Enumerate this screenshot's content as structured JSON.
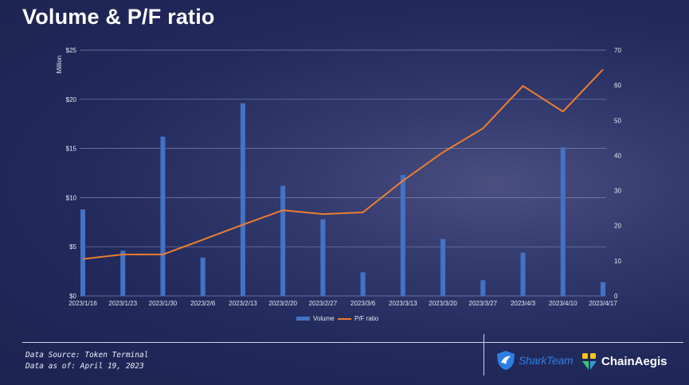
{
  "page": {
    "title": "Volume & P/F ratio",
    "source_line1": "Data Source: Token Terminal",
    "source_line2": "Data as of: April 19, 2023",
    "logo_left": "SharkTeam",
    "logo_right": "ChainAegis"
  },
  "colors": {
    "bar": "#4472c4",
    "line": "#ed7d31",
    "grid": "#7d83aa",
    "text": "#e6e8f2"
  },
  "chart_data": {
    "type": "bar",
    "title": "Volume & P/F ratio",
    "categories": [
      "2023/1/16",
      "2023/1/23",
      "2023/1/30",
      "2023/2/6",
      "2023/2/13",
      "2023/2/20",
      "2023/2/27",
      "2023/3/6",
      "2023/3/13",
      "2023/3/20",
      "2023/3/27",
      "2023/4/3",
      "2023/4/10",
      "2023/4/17"
    ],
    "series": [
      {
        "name": "Volume",
        "type": "bar",
        "axis": "left",
        "values": [
          8.8,
          4.6,
          16.2,
          3.9,
          19.6,
          11.2,
          7.8,
          2.4,
          12.3,
          5.8,
          1.6,
          4.4,
          15.1,
          1.4
        ]
      },
      {
        "name": "P/F ratio",
        "type": "line",
        "axis": "right",
        "values": [
          10.5,
          11.8,
          11.8,
          16.0,
          20.3,
          24.4,
          23.3,
          23.8,
          32.8,
          40.9,
          47.7,
          59.8,
          52.5,
          64.5
        ]
      }
    ],
    "left_axis": {
      "label": "Million",
      "min": 0,
      "max": 25,
      "ticks": [
        "$0",
        "$5",
        "$10",
        "$15",
        "$20",
        "$25"
      ]
    },
    "right_axis": {
      "min": 0,
      "max": 70,
      "ticks": [
        "0",
        "10",
        "20",
        "30",
        "40",
        "50",
        "60",
        "70"
      ]
    },
    "grid": true,
    "legend_position": "bottom"
  }
}
